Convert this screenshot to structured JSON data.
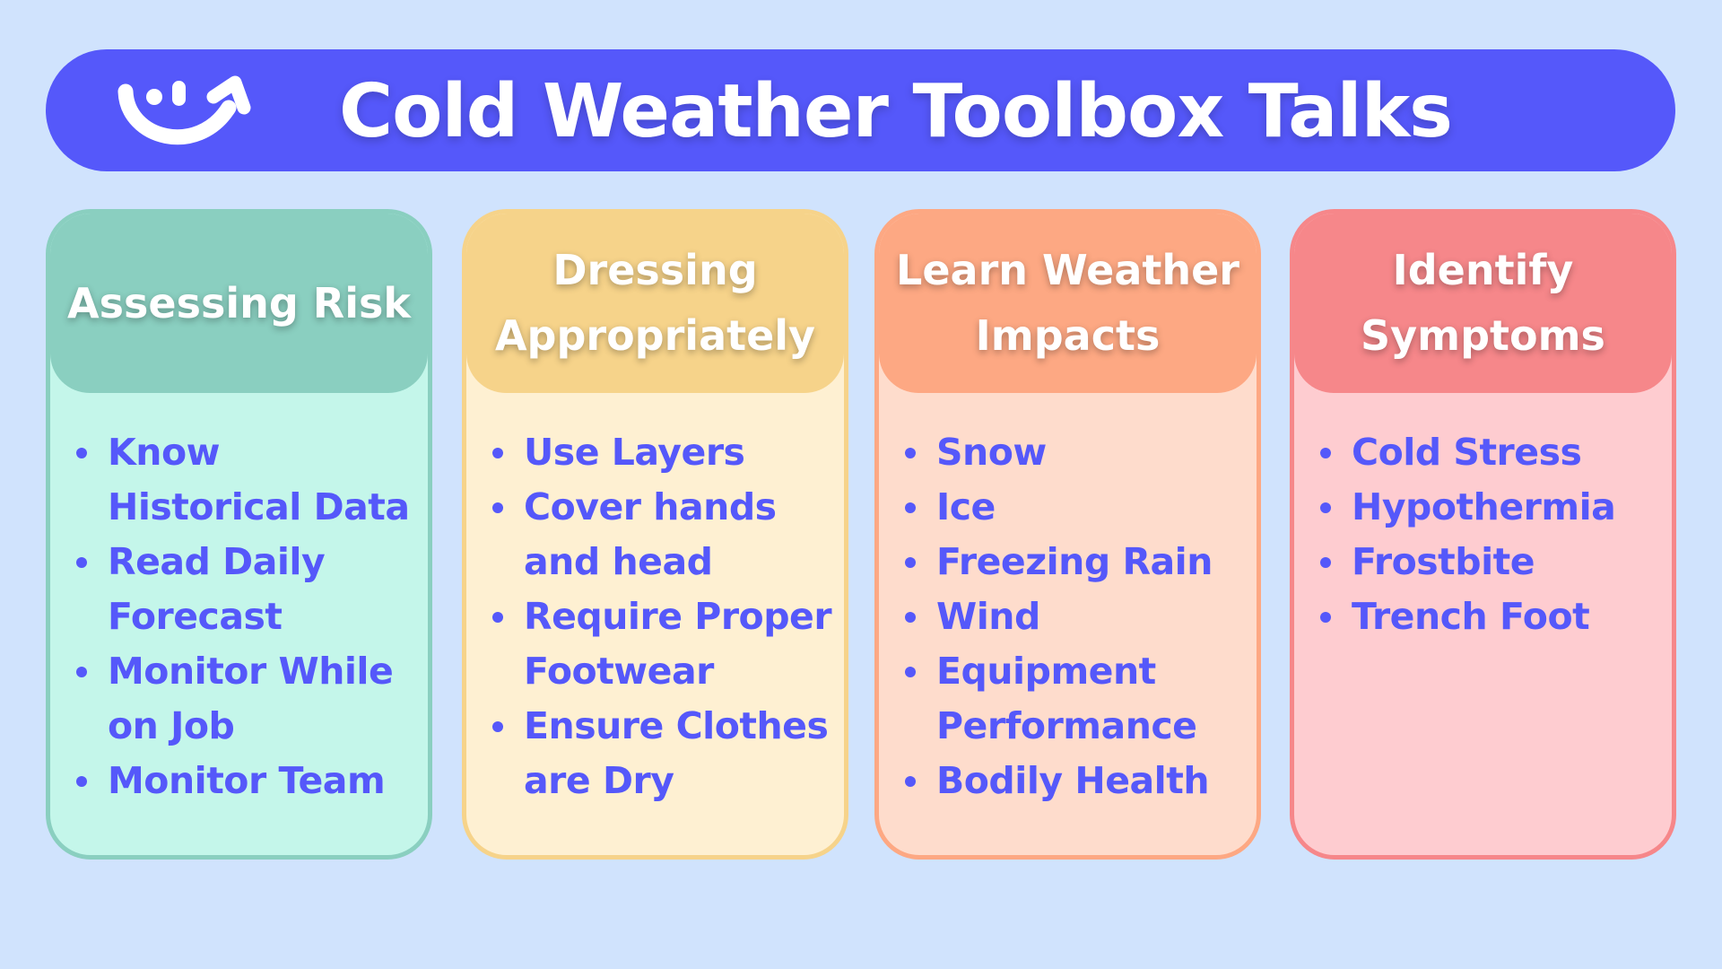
{
  "header": {
    "title": "Cold Weather Toolbox Talks",
    "logo_icon": "smile-arrow-logo",
    "color": "#5558fa"
  },
  "cards": [
    {
      "title": "Assessing Risk",
      "items": [
        "Know Historical Data",
        "Read Daily Forecast",
        "Monitor While on Job",
        "Monitor Team"
      ],
      "header_color": "#8acfc0",
      "body_color": "#c4f6ea"
    },
    {
      "title": "Dressing Appropriately",
      "items": [
        "Use Layers",
        "Cover hands and head",
        "Require Proper Footwear",
        "Ensure Clothes are Dry"
      ],
      "header_color": "#f6d38a",
      "body_color": "#fef0d2"
    },
    {
      "title": "Learn Weather Impacts",
      "items": [
        "Snow",
        "Ice",
        "Freezing Rain",
        "Wind",
        "Equipment Performance",
        "Bodily Health"
      ],
      "header_color": "#fda883",
      "body_color": "#fedccc"
    },
    {
      "title": "Identify Symptoms",
      "items": [
        "Cold Stress",
        "Hypothermia",
        "Frostbite",
        "Trench Foot"
      ],
      "header_color": "#f6878a",
      "body_color": "#feccd0"
    }
  ]
}
